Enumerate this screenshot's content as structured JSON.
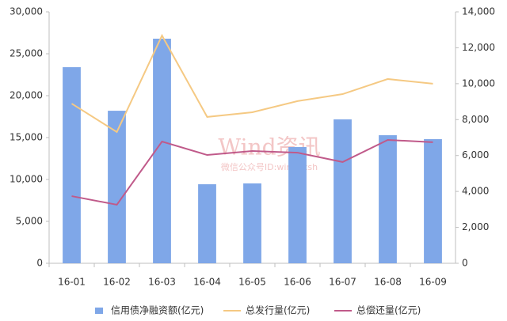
{
  "chart_data": {
    "type": "bar",
    "categories": [
      "16-01",
      "16-02",
      "16-03",
      "16-04",
      "16-05",
      "16-06",
      "16-07",
      "16-08",
      "16-09"
    ],
    "series": [
      {
        "name": "信用债净融资额(亿元)",
        "type": "bar",
        "color": "#7fa7e8",
        "values": [
          23400,
          18200,
          26800,
          9430,
          9530,
          13870,
          17170,
          15280,
          14810
        ]
      },
      {
        "name": "总发行量(亿元)",
        "type": "line",
        "axis": "y2",
        "color": "#f5c983",
        "values": [
          8890,
          7310,
          12680,
          8150,
          8410,
          9030,
          9420,
          10260,
          10000
        ]
      },
      {
        "name": "总偿还量(亿元)",
        "type": "line",
        "axis": "y2",
        "color": "#c05a8a",
        "values": [
          3740,
          3260,
          6780,
          6030,
          6250,
          6160,
          5640,
          6870,
          6740
        ]
      }
    ],
    "ylim": [
      0,
      30000
    ],
    "yticks": [
      0,
      {
        "value": 5000,
        "label": "5,000"
      },
      {
        "value": 10000,
        "label": "10,000"
      },
      {
        "value": 15000,
        "label": "15,000"
      },
      {
        "value": 20000,
        "label": "20,000"
      },
      {
        "value": 25000,
        "label": "25,000"
      },
      {
        "value": 30000,
        "label": "30,000"
      }
    ],
    "y2lim": [
      0,
      14000
    ],
    "y2ticks": [
      0,
      {
        "value": 2000,
        "label": "2,000"
      },
      {
        "value": 4000,
        "label": "4,000"
      },
      {
        "value": 6000,
        "label": "6,000"
      },
      {
        "value": 8000,
        "label": "8,000"
      },
      {
        "value": 10000,
        "label": "10,000"
      },
      {
        "value": 12000,
        "label": "12,000"
      },
      {
        "value": 14000,
        "label": "14,000"
      }
    ],
    "grid": false,
    "legend": "bottom",
    "watermark": [
      "Wind资讯",
      "微信公众号ID:windxxsh"
    ]
  }
}
